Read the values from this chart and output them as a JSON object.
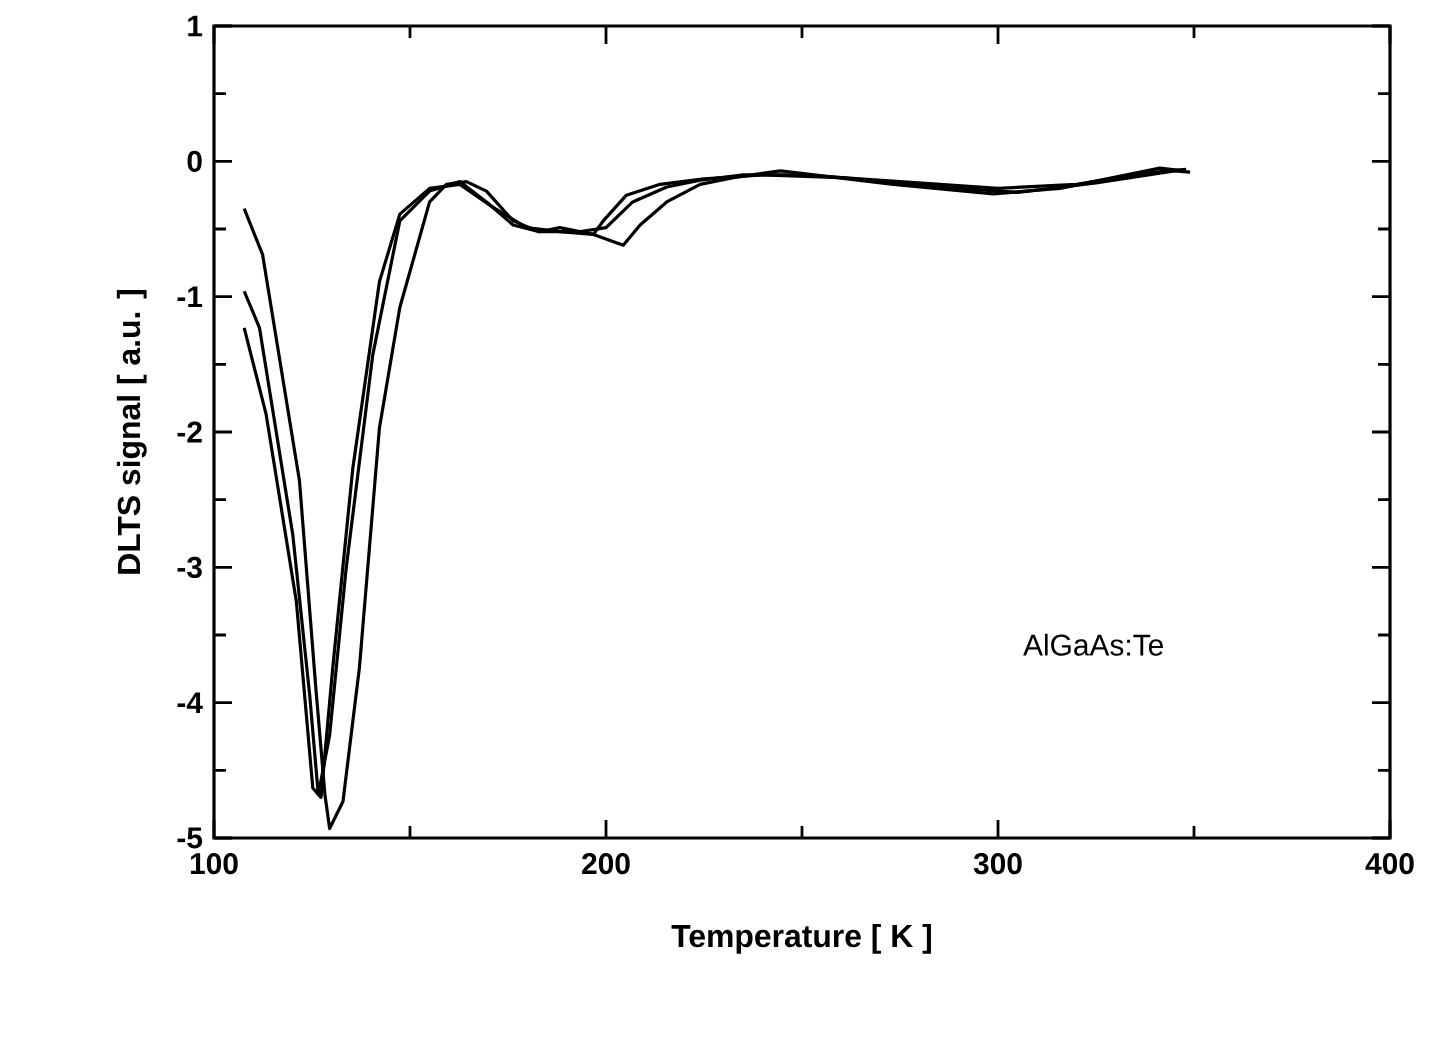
{
  "chart_data": {
    "type": "line",
    "xlabel": "Temperature [ K ]",
    "ylabel": "DLTS signal [ a.u. ]",
    "annotations": [
      "AlGaAs:Te"
    ],
    "xlim": [
      100,
      400
    ],
    "ylim": [
      -5,
      1
    ],
    "xticks": [
      100,
      200,
      300,
      400
    ],
    "yticks": [
      -5,
      -4,
      -3,
      -2,
      -1,
      0,
      1
    ],
    "grid": false,
    "marker": "none",
    "line_style": "solid",
    "series": [
      {
        "color": "#000000",
        "x": [
          107.7,
          112.4,
          121.8,
          126,
          128.3,
          129.5,
          132.9,
          137.1,
          142.2,
          147.4,
          155,
          159.3,
          164.4,
          169.5,
          176.3,
          183,
          188.2,
          196.8,
          204.4,
          208.7,
          215.5,
          224,
          232.5,
          244.5,
          273.3,
          298.8,
          315.8,
          341.3,
          347.3
        ],
        "values": [
          -0.35,
          -0.69,
          -2.36,
          -3.9,
          -4.68,
          -4.93,
          -4.73,
          -3.74,
          -1.97,
          -1.08,
          -0.3,
          -0.17,
          -0.15,
          -0.22,
          -0.44,
          -0.52,
          -0.49,
          -0.54,
          -0.62,
          -0.47,
          -0.3,
          -0.17,
          -0.12,
          -0.07,
          -0.17,
          -0.24,
          -0.2,
          -0.05,
          -0.07
        ]
      },
      {
        "color": "#000000",
        "x": [
          107.7,
          111.6,
          120.1,
          124.4,
          126.6,
          129.5,
          133.7,
          140.5,
          147.4,
          155,
          162.7,
          169.5,
          176.3,
          183,
          193.2,
          200,
          206.8,
          215.5,
          224,
          235,
          250,
          275,
          300,
          320,
          340,
          348
        ],
        "values": [
          -0.96,
          -1.23,
          -2.76,
          -3.94,
          -4.68,
          -4.24,
          -3.01,
          -1.43,
          -0.44,
          -0.22,
          -0.15,
          -0.3,
          -0.47,
          -0.52,
          -0.52,
          -0.49,
          -0.3,
          -0.19,
          -0.14,
          -0.1,
          -0.1,
          -0.15,
          -0.2,
          -0.17,
          -0.08,
          -0.06
        ]
      },
      {
        "color": "#000000",
        "x": [
          107.7,
          113.3,
          121,
          125.2,
          127.3,
          130.3,
          135.4,
          142.2,
          147.4,
          155,
          162.7,
          171.2,
          179.7,
          188.2,
          196.8,
          199.3,
          205.2,
          213.8,
          225,
          240,
          260,
          285,
          305,
          325,
          345,
          349
        ],
        "values": [
          -1.23,
          -1.87,
          -3.25,
          -4.63,
          -4.7,
          -3.74,
          -2.27,
          -0.89,
          -0.39,
          -0.2,
          -0.17,
          -0.34,
          -0.49,
          -0.52,
          -0.54,
          -0.44,
          -0.25,
          -0.17,
          -0.13,
          -0.1,
          -0.12,
          -0.19,
          -0.23,
          -0.16,
          -0.07,
          -0.08
        ]
      }
    ]
  }
}
